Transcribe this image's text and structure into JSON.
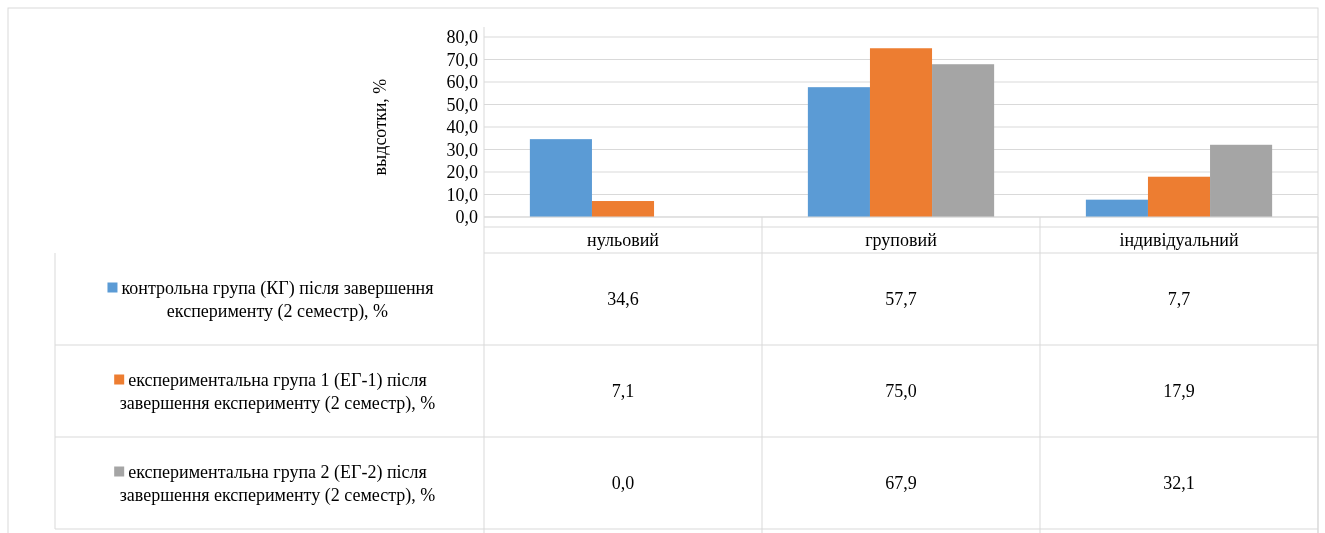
{
  "chart_data": {
    "type": "bar",
    "ylabel": "выдсотки, %",
    "categories": [
      "нульовий",
      "груповий",
      "індивідуальний"
    ],
    "series": [
      {
        "name": "контрольна група (КГ) після завершення експерименту (2 семестр), %",
        "color": "#5b9bd5",
        "values": [
          34.6,
          57.7,
          7.7
        ],
        "value_labels": [
          "34,6",
          "57,7",
          "7,7"
        ]
      },
      {
        "name": "експериментальна група 1 (ЕГ-1) після завершення експерименту (2 семестр), %",
        "color": "#ed7d31",
        "values": [
          7.1,
          75.0,
          17.9
        ],
        "value_labels": [
          "7,1",
          "75,0",
          "17,9"
        ]
      },
      {
        "name": "експериментальна група 2 (ЕГ-2) після завершення експерименту (2 семестр), %",
        "color": "#a5a5a5",
        "values": [
          0.0,
          67.9,
          32.1
        ],
        "value_labels": [
          "0,0",
          "67,9",
          "32,1"
        ]
      }
    ],
    "ylim": [
      0,
      80
    ],
    "yticks": [
      {
        "value": 0,
        "label": "0,0"
      },
      {
        "value": 10,
        "label": "10,0"
      },
      {
        "value": 20,
        "label": "20,0"
      },
      {
        "value": 30,
        "label": "30,0"
      },
      {
        "value": 40,
        "label": "40,0"
      },
      {
        "value": 50,
        "label": "50,0"
      },
      {
        "value": 60,
        "label": "60,0"
      },
      {
        "value": 70,
        "label": "70,0"
      },
      {
        "value": 80,
        "label": "80,0"
      }
    ],
    "grid": "y",
    "legend": "bottom"
  }
}
